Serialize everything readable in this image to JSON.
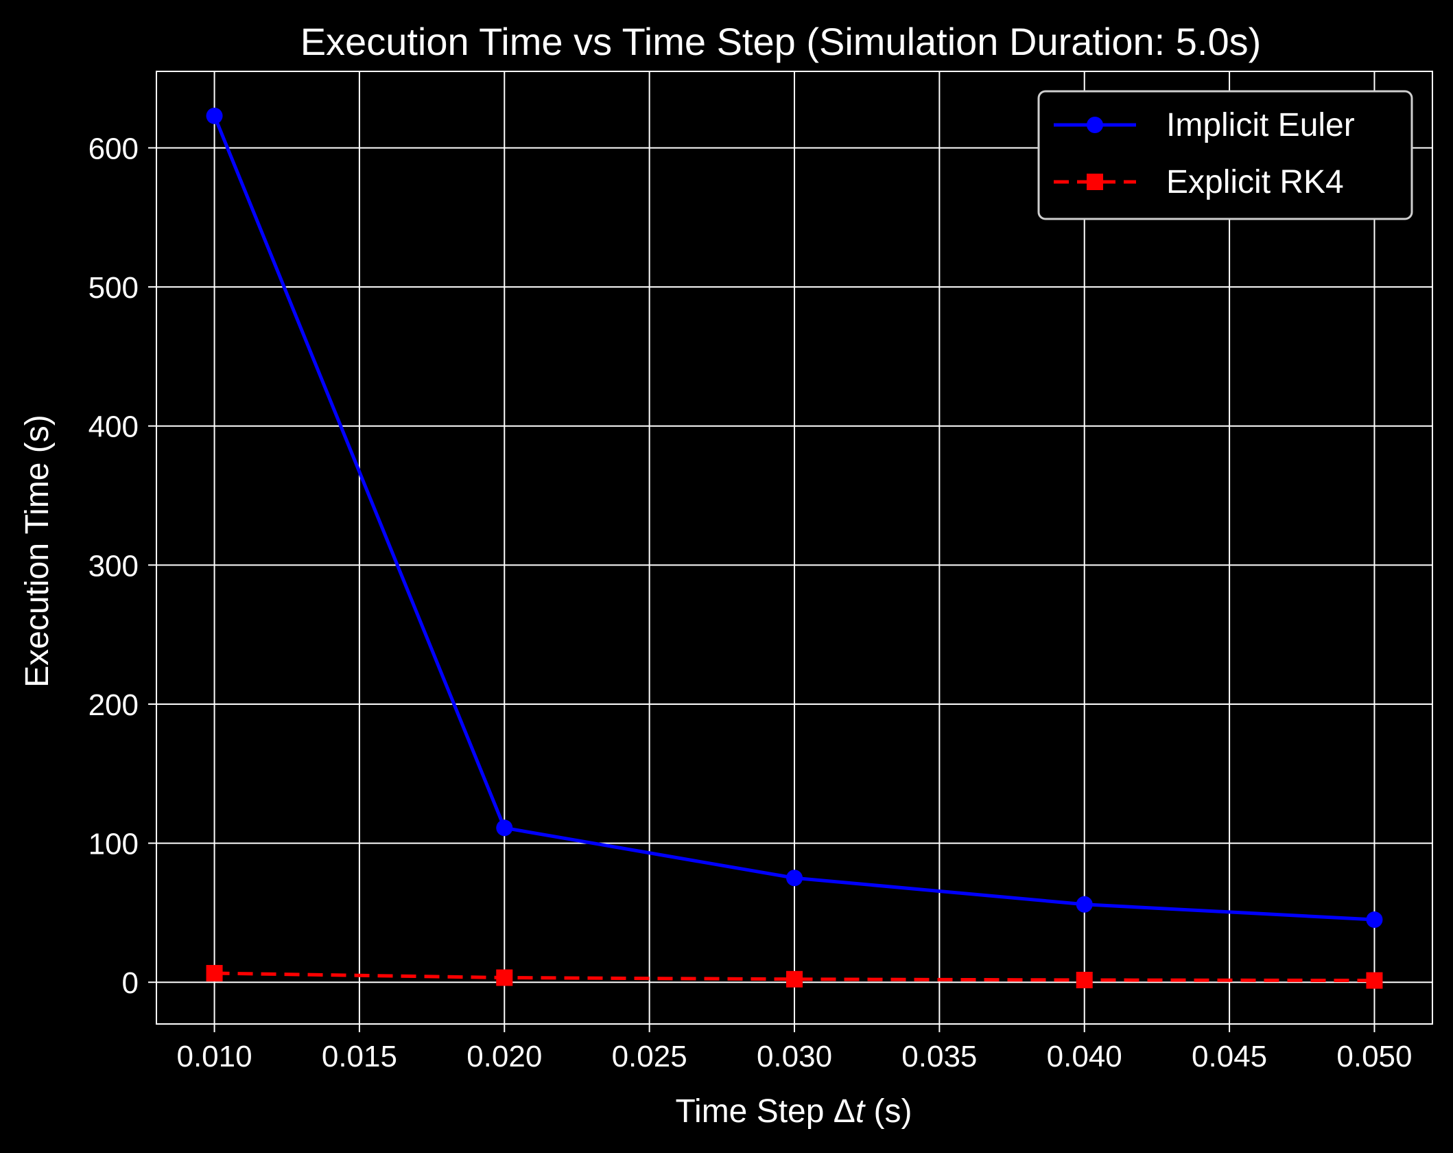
{
  "chart_data": {
    "type": "line",
    "title": "Execution Time vs Time Step (Simulation Duration: 5.0s)",
    "xlabel_prefix": "Time Step Δ",
    "xlabel_var": "t",
    "xlabel_suffix": " (s)",
    "ylabel": "Execution Time (s)",
    "xlim": [
      0.008,
      0.052
    ],
    "ylim": [
      -30,
      655
    ],
    "xticks": [
      0.01,
      0.015,
      0.02,
      0.025,
      0.03,
      0.035,
      0.04,
      0.045,
      0.05
    ],
    "xtick_labels": [
      "0.010",
      "0.015",
      "0.020",
      "0.025",
      "0.030",
      "0.035",
      "0.040",
      "0.045",
      "0.050"
    ],
    "yticks": [
      0,
      100,
      200,
      300,
      400,
      500,
      600
    ],
    "ytick_labels": [
      "0",
      "100",
      "200",
      "300",
      "400",
      "500",
      "600"
    ],
    "grid": true,
    "legend_position": "top-right",
    "x": [
      0.01,
      0.02,
      0.03,
      0.04,
      0.05
    ],
    "series": [
      {
        "name": "Implicit Euler",
        "values": [
          623,
          111,
          75,
          56,
          45
        ],
        "color": "#0000ff",
        "marker": "circle",
        "linestyle": "solid"
      },
      {
        "name": "Explicit RK4",
        "values": [
          6.5,
          3.3,
          2.2,
          1.6,
          1.3
        ],
        "color": "#ff0000",
        "marker": "square",
        "linestyle": "dashed"
      }
    ]
  }
}
